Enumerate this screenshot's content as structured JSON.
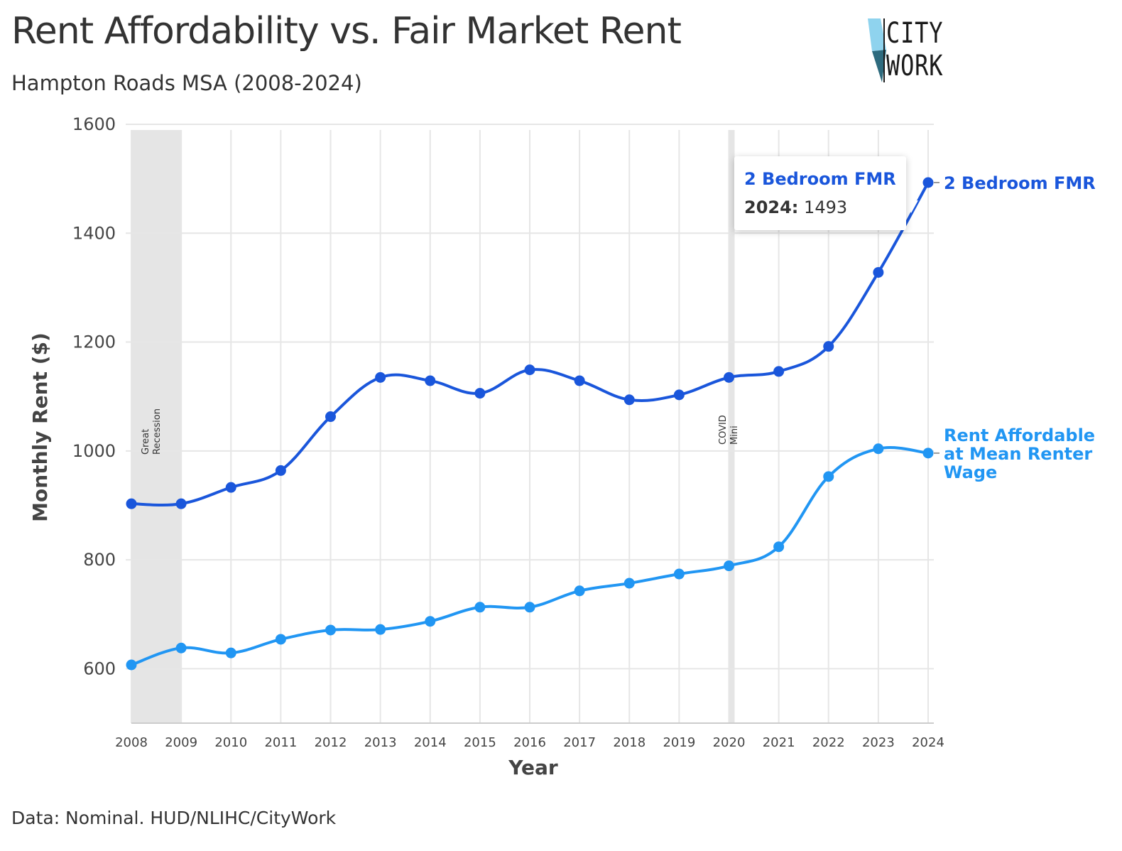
{
  "header": {
    "title": "Rent Affordability vs. Fair Market Rent",
    "subtitle": "Hampton Roads MSA (2008-2024)"
  },
  "logo": {
    "line1": "CITY",
    "line2": "WORK"
  },
  "footer": {
    "source": "Data: Nominal. HUD/NLIHC/CityWork"
  },
  "colors": {
    "fmr": "#1a56db",
    "affordable": "#2196f3",
    "band": "#e5e5e5",
    "grid": "#e6e6e6"
  },
  "tooltip": {
    "title": "2 Bedroom FMR",
    "year": "2024:",
    "value": "1493"
  },
  "chart_data": {
    "type": "line",
    "title": "Rent Affordability vs. Fair Market Rent",
    "subtitle": "Hampton Roads MSA (2008-2024)",
    "xlabel": "Year",
    "ylabel": "Monthly Rent ($)",
    "x": [
      2008,
      2009,
      2010,
      2011,
      2012,
      2013,
      2014,
      2015,
      2016,
      2017,
      2018,
      2019,
      2020,
      2021,
      2022,
      2023,
      2024
    ],
    "xlim": [
      2008,
      2024
    ],
    "ylim": [
      500,
      1600
    ],
    "yticks": [
      "600",
      "800",
      "1000",
      "1200",
      "1400",
      "1600"
    ],
    "xticks": [
      "2008",
      "2009",
      "2010",
      "2011",
      "2012",
      "2013",
      "2014",
      "2015",
      "2016",
      "2017",
      "2018",
      "2019",
      "2020",
      "2021",
      "2022",
      "2023",
      "2024"
    ],
    "grid": true,
    "series": [
      {
        "name": "2 Bedroom FMR",
        "label_lines": [
          "2 Bedroom FMR"
        ],
        "values": [
          903,
          903,
          933,
          964,
          1063,
          1135,
          1129,
          1106,
          1149,
          1129,
          1094,
          1103,
          1135,
          1146,
          1192,
          1328,
          1493
        ]
      },
      {
        "name": "Rent Affordable at Mean Renter Wage",
        "label_lines": [
          "Rent Affordable",
          "at Mean Renter",
          "Wage"
        ],
        "values": [
          607,
          638,
          629,
          654,
          671,
          672,
          687,
          713,
          713,
          743,
          757,
          774,
          789,
          824,
          953,
          1004,
          996
        ]
      }
    ],
    "bands": [
      {
        "label_lines": [
          "Great",
          "Recession"
        ],
        "from": 2008,
        "to": 2009
      },
      {
        "label_lines": [
          "COVID",
          "Mini"
        ],
        "from": 2020,
        "to": 2020.1
      }
    ]
  }
}
